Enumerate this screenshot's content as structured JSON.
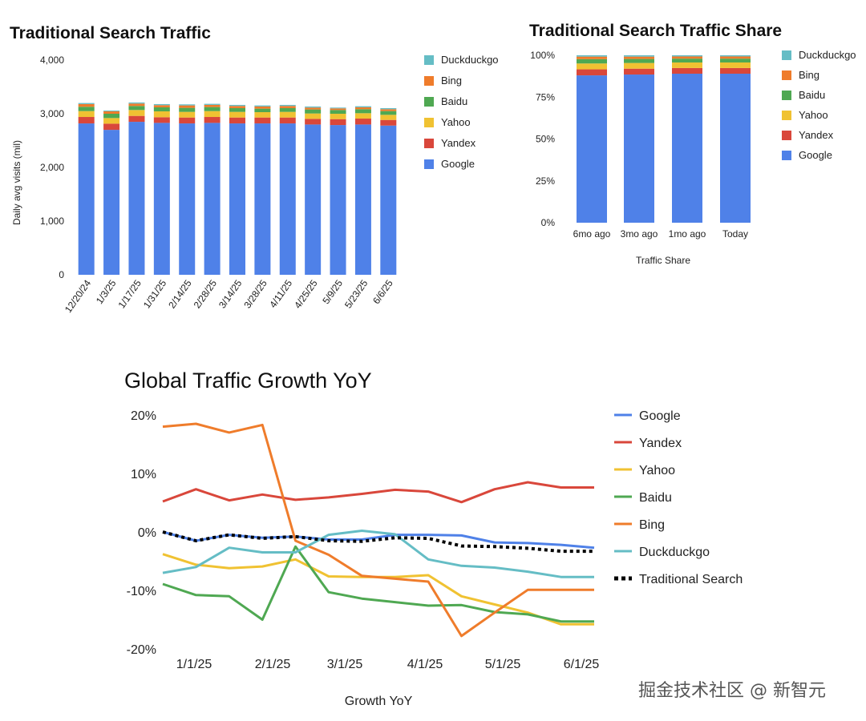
{
  "chart_data": [
    {
      "type": "bar",
      "stacked": true,
      "title": "Traditional Search Traffic",
      "xlabel": "",
      "ylabel": "Daily avg visits (mil)",
      "ylim": [
        0,
        4000
      ],
      "yticks": [
        "0",
        "1,000",
        "2,000",
        "3,000",
        "4,000"
      ],
      "categories": [
        "12/20/24",
        "1/3/25",
        "1/17/25",
        "1/31/25",
        "2/14/25",
        "2/28/25",
        "3/14/25",
        "3/28/25",
        "4/11/25",
        "4/25/25",
        "5/9/25",
        "5/23/25",
        "6/6/25"
      ],
      "legend": [
        "Duckduckgo",
        "Bing",
        "Baidu",
        "Yahoo",
        "Yandex",
        "Google"
      ],
      "legend_position": "right",
      "series": [
        {
          "name": "Google",
          "color": "#4f81e8",
          "values": [
            2820,
            2700,
            2850,
            2830,
            2820,
            2830,
            2820,
            2820,
            2820,
            2800,
            2790,
            2800,
            2780
          ]
        },
        {
          "name": "Yandex",
          "color": "#d9473b",
          "values": [
            120,
            115,
            110,
            105,
            110,
            110,
            110,
            110,
            110,
            105,
            110,
            110,
            105
          ]
        },
        {
          "name": "Yahoo",
          "color": "#f0c232",
          "values": [
            110,
            105,
            110,
            110,
            105,
            110,
            105,
            100,
            105,
            100,
            100,
            100,
            95
          ]
        },
        {
          "name": "Baidu",
          "color": "#4fa852",
          "values": [
            80,
            80,
            75,
            75,
            75,
            75,
            70,
            65,
            70,
            75,
            70,
            75,
            70
          ]
        },
        {
          "name": "Bing",
          "color": "#ef7c2b",
          "values": [
            50,
            45,
            45,
            40,
            45,
            40,
            40,
            40,
            40,
            35,
            30,
            35,
            35
          ]
        },
        {
          "name": "Duckduckgo",
          "color": "#65bdc5",
          "values": [
            20,
            15,
            20,
            20,
            20,
            20,
            20,
            20,
            20,
            20,
            15,
            20,
            20
          ]
        }
      ]
    },
    {
      "type": "bar",
      "stacked": true,
      "title": "Traditional Search Traffic Share",
      "xlabel": "Traffic Share",
      "ylabel": "",
      "ylim": [
        0,
        100
      ],
      "yticks": [
        "0%",
        "25%",
        "50%",
        "75%",
        "100%"
      ],
      "categories": [
        "6mo ago",
        "3mo ago",
        "1mo ago",
        "Today"
      ],
      "legend": [
        "Duckduckgo",
        "Bing",
        "Baidu",
        "Yahoo",
        "Yandex",
        "Google"
      ],
      "legend_position": "right",
      "series": [
        {
          "name": "Google",
          "color": "#4f81e8",
          "values": [
            88.0,
            88.5,
            89.0,
            89.0
          ]
        },
        {
          "name": "Yandex",
          "color": "#d9473b",
          "values": [
            3.6,
            3.5,
            3.4,
            3.4
          ]
        },
        {
          "name": "Yahoo",
          "color": "#f0c232",
          "values": [
            3.5,
            3.4,
            3.3,
            3.3
          ]
        },
        {
          "name": "Baidu",
          "color": "#4fa852",
          "values": [
            2.6,
            2.4,
            2.3,
            2.3
          ]
        },
        {
          "name": "Bing",
          "color": "#ef7c2b",
          "values": [
            1.5,
            1.4,
            1.3,
            1.3
          ]
        },
        {
          "name": "Duckduckgo",
          "color": "#65bdc5",
          "values": [
            0.8,
            0.8,
            0.7,
            0.7
          ]
        }
      ]
    },
    {
      "type": "line",
      "title": "Global Traffic Growth YoY",
      "xlabel": "Growth YoY",
      "ylabel": "",
      "ylim": [
        -20,
        20
      ],
      "yticks": [
        "20%",
        "10%",
        "0%",
        "-10%",
        "-20%"
      ],
      "xticks": [
        "1/1/25",
        "2/1/25",
        "3/1/25",
        "4/1/25",
        "5/1/25",
        "6/1/25"
      ],
      "x": [
        "12/20/24",
        "1/3/25",
        "1/17/25",
        "1/31/25",
        "2/14/25",
        "2/28/25",
        "3/14/25",
        "3/28/25",
        "4/11/25",
        "4/25/25",
        "5/9/25",
        "5/23/25",
        "6/6/25",
        "6/20/25"
      ],
      "legend": [
        "Google",
        "Yandex",
        "Yahoo",
        "Baidu",
        "Bing",
        "Duckduckgo",
        "Traditional Search"
      ],
      "legend_position": "right",
      "series": [
        {
          "name": "Google",
          "color": "#4f81e8",
          "dash": false,
          "values": [
            0,
            -1.5,
            -0.5,
            -1,
            -0.8,
            -1.3,
            -1.3,
            -0.5,
            -0.5,
            -0.6,
            -1.8,
            -1.9,
            -2.2,
            -2.7
          ]
        },
        {
          "name": "Yandex",
          "color": "#d9473b",
          "dash": false,
          "values": [
            5.2,
            7.3,
            5.4,
            6.4,
            5.5,
            5.9,
            6.5,
            7.2,
            6.9,
            5.1,
            7.3,
            8.5,
            7.6,
            7.6
          ]
        },
        {
          "name": "Yahoo",
          "color": "#f0c232",
          "dash": false,
          "values": [
            -3.8,
            -5.6,
            -6.2,
            -5.9,
            -4.7,
            -7.6,
            -7.7,
            -7.7,
            -7.4,
            -11,
            -12.4,
            -13.8,
            -15.8,
            -15.8
          ]
        },
        {
          "name": "Baidu",
          "color": "#4fa852",
          "dash": false,
          "values": [
            -8.9,
            -10.8,
            -11,
            -15,
            -2.5,
            -10.3,
            -11.4,
            -12,
            -12.6,
            -12.5,
            -13.7,
            -14.1,
            -15.3,
            -15.3
          ]
        },
        {
          "name": "Bing",
          "color": "#ef7c2b",
          "dash": false,
          "values": [
            18,
            18.5,
            17,
            18.3,
            -1.5,
            -3.9,
            -7.5,
            -8,
            -8.5,
            -17.8,
            -13.8,
            -9.9,
            -9.9,
            -9.9
          ]
        },
        {
          "name": "Duckduckgo",
          "color": "#65bdc5",
          "dash": false,
          "values": [
            -7,
            -6,
            -2.7,
            -3.5,
            -3.5,
            -0.5,
            0.2,
            -0.4,
            -4.7,
            -5.8,
            -6.1,
            -6.8,
            -7.7,
            -7.7
          ]
        },
        {
          "name": "Traditional Search",
          "color": "#000000",
          "dash": true,
          "values": [
            0,
            -1.5,
            -0.5,
            -1.1,
            -0.8,
            -1.5,
            -1.6,
            -1,
            -1.1,
            -2.4,
            -2.5,
            -2.8,
            -3.3,
            -3.3
          ]
        }
      ]
    }
  ],
  "watermark": "掘金技术社区 @ 新智元"
}
